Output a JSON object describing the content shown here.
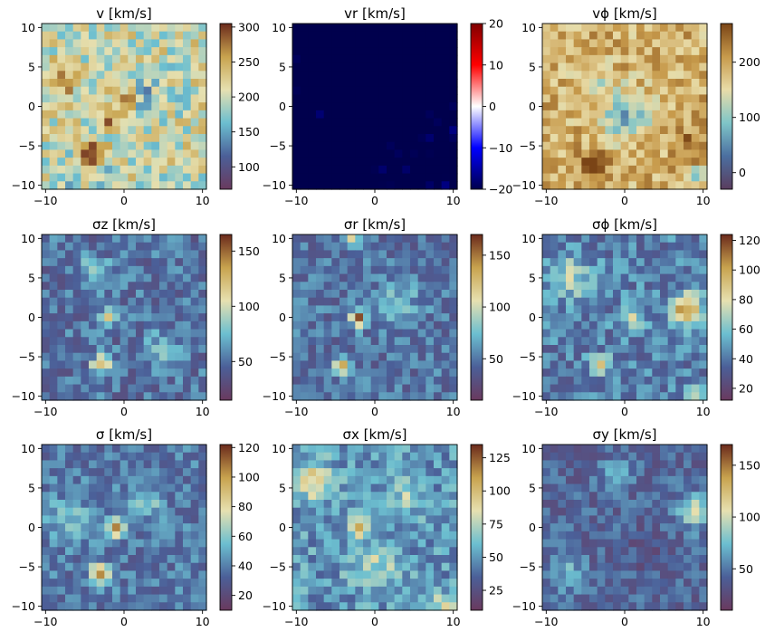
{
  "chart_data": [
    {
      "type": "heatmap",
      "title": "v [km/s]",
      "cmap": "speed",
      "vmin": 68,
      "vmax": 305,
      "xlim": [
        -10.5,
        10.5
      ],
      "ylim": [
        -10.5,
        10.5
      ],
      "xticks": [
        -10,
        0,
        10
      ],
      "yticks": [
        -10,
        -5,
        0,
        5,
        10
      ],
      "cbar_ticks": [
        100,
        150,
        200,
        250,
        300
      ],
      "base": 205,
      "amp": 45,
      "seed": 11,
      "features": [
        [
          0,
          1,
          65,
          1.2
        ],
        [
          -1.5,
          -1.5,
          55,
          1.0
        ],
        [
          -4,
          -6,
          95,
          1.0
        ],
        [
          -3,
          -9,
          -35,
          1.0
        ],
        [
          -7,
          -9,
          -40,
          1.5
        ],
        [
          3,
          1,
          -40,
          2.0
        ],
        [
          -8,
          3,
          40,
          1.5
        ]
      ]
    },
    {
      "type": "heatmap",
      "title": "vr [km/s]",
      "cmap": "seismic",
      "vmin": -20,
      "vmax": 20,
      "xlim": [
        -10.5,
        10.5
      ],
      "ylim": [
        -10.5,
        10.5
      ],
      "xticks": [
        -10,
        0,
        10
      ],
      "yticks": [
        -10,
        -5,
        0,
        5,
        10
      ],
      "cbar_ticks": [
        -20,
        -10,
        0,
        10,
        20
      ],
      "base": -25,
      "amp": 8,
      "seed": 23,
      "features": [
        [
          1,
          7,
          -60,
          3.5
        ],
        [
          0,
          3,
          -45,
          2.5
        ],
        [
          -2,
          -3,
          -40,
          1.5
        ],
        [
          -8,
          9,
          -30,
          1.5
        ],
        [
          7,
          9,
          -40,
          2.0
        ],
        [
          -7,
          -9,
          -40,
          1.5
        ]
      ]
    },
    {
      "type": "heatmap",
      "title": "vϕ [km/s]",
      "cmap": "brbg_soft",
      "vmin": -30,
      "vmax": 270,
      "xlim": [
        -10.5,
        10.5
      ],
      "ylim": [
        -10.5,
        10.5
      ],
      "xticks": [
        -10,
        0,
        10
      ],
      "yticks": [
        -10,
        -5,
        0,
        5,
        10
      ],
      "cbar_ticks": [
        0,
        100,
        200
      ],
      "base": 190,
      "amp": 45,
      "seed": 37,
      "features": [
        [
          0,
          -1,
          -110,
          2.2
        ],
        [
          -4,
          4,
          -55,
          1.5
        ],
        [
          -4,
          -7,
          160,
          0.9
        ],
        [
          9,
          -9,
          -110,
          0.9
        ],
        [
          8,
          -5,
          45,
          1.5
        ]
      ]
    },
    {
      "type": "heatmap",
      "title": "σz [km/s]",
      "cmap": "speed",
      "vmin": 15,
      "vmax": 165,
      "xlim": [
        -10.5,
        10.5
      ],
      "ylim": [
        -10.5,
        10.5
      ],
      "xticks": [
        -10,
        0,
        10
      ],
      "yticks": [
        -10,
        -5,
        0,
        5,
        10
      ],
      "cbar_ticks": [
        50,
        100,
        150
      ],
      "base": 50,
      "amp": 18,
      "seed": 41,
      "features": [
        [
          -2,
          0,
          70,
          0.8
        ],
        [
          -3,
          -6,
          85,
          0.8
        ],
        [
          -4,
          6,
          25,
          1.5
        ],
        [
          5,
          -4,
          25,
          1.5
        ]
      ]
    },
    {
      "type": "heatmap",
      "title": "σr [km/s]",
      "cmap": "speed",
      "vmin": 10,
      "vmax": 170,
      "xlim": [
        -10.5,
        10.5
      ],
      "ylim": [
        -10.5,
        10.5
      ],
      "xticks": [
        -10,
        0,
        10
      ],
      "yticks": [
        -10,
        -5,
        0,
        5,
        10
      ],
      "cbar_ticks": [
        50,
        100,
        150
      ],
      "base": 48,
      "amp": 18,
      "seed": 53,
      "features": [
        [
          -2,
          0,
          95,
          0.8
        ],
        [
          -4,
          -6,
          80,
          0.8
        ],
        [
          -3,
          10,
          75,
          0.7
        ],
        [
          3,
          2,
          25,
          2.0
        ]
      ]
    },
    {
      "type": "heatmap",
      "title": "σϕ [km/s]",
      "cmap": "speed",
      "vmin": 12,
      "vmax": 124,
      "xlim": [
        -10.5,
        10.5
      ],
      "ylim": [
        -10.5,
        10.5
      ],
      "xticks": [
        -10,
        0,
        10
      ],
      "yticks": [
        -10,
        -5,
        0,
        5,
        10
      ],
      "cbar_ticks": [
        20,
        40,
        60,
        80,
        100,
        120
      ],
      "base": 42,
      "amp": 14,
      "seed": 67,
      "features": [
        [
          8,
          1,
          65,
          1.3
        ],
        [
          -3,
          -6,
          55,
          0.8
        ],
        [
          -7,
          5,
          25,
          2.0
        ],
        [
          1,
          0,
          30,
          1.0
        ],
        [
          9,
          -10,
          25,
          1.0
        ]
      ]
    },
    {
      "type": "heatmap",
      "title": "σ [km/s]",
      "cmap": "speed",
      "vmin": 10,
      "vmax": 122,
      "xlim": [
        -10.5,
        10.5
      ],
      "ylim": [
        -10.5,
        10.5
      ],
      "xticks": [
        -10,
        0,
        10
      ],
      "yticks": [
        -10,
        -5,
        0,
        5,
        10
      ],
      "cbar_ticks": [
        20,
        40,
        60,
        80,
        100,
        120
      ],
      "base": 38,
      "amp": 12,
      "seed": 79,
      "features": [
        [
          -1,
          0,
          75,
          0.8
        ],
        [
          -3,
          -6,
          70,
          0.9
        ],
        [
          -7,
          1,
          20,
          2.0
        ],
        [
          3,
          3,
          20,
          1.5
        ]
      ]
    },
    {
      "type": "heatmap",
      "title": "σx [km/s]",
      "cmap": "speed",
      "vmin": 10,
      "vmax": 135,
      "xlim": [
        -10.5,
        10.5
      ],
      "ylim": [
        -10.5,
        10.5
      ],
      "xticks": [
        -10,
        0,
        10
      ],
      "yticks": [
        -10,
        -5,
        0,
        5,
        10
      ],
      "cbar_ticks": [
        25,
        50,
        75,
        100,
        125
      ],
      "base": 50,
      "amp": 16,
      "seed": 83,
      "features": [
        [
          -2,
          0,
          50,
          1.0
        ],
        [
          -8,
          6,
          40,
          1.8
        ],
        [
          9,
          -10,
          40,
          1.0
        ],
        [
          0,
          -5,
          25,
          2.0
        ],
        [
          4,
          4,
          20,
          1.5
        ]
      ]
    },
    {
      "type": "heatmap",
      "title": "σy [km/s]",
      "cmap": "speed",
      "vmin": 10,
      "vmax": 170,
      "xlim": [
        -10.5,
        10.5
      ],
      "ylim": [
        -10.5,
        10.5
      ],
      "xticks": [
        -10,
        0,
        10
      ],
      "yticks": [
        -10,
        -5,
        0,
        5,
        10
      ],
      "cbar_ticks": [
        50,
        100,
        150
      ],
      "base": 42,
      "amp": 16,
      "seed": 97,
      "features": [
        [
          9,
          2,
          60,
          1.5
        ],
        [
          -7,
          -6,
          30,
          1.5
        ],
        [
          -1,
          7,
          25,
          1.5
        ],
        [
          3,
          -3,
          -10,
          2.0
        ]
      ]
    }
  ],
  "colormaps": {
    "speed": [
      "#6a3a5e",
      "#4b5f98",
      "#6cbfd0",
      "#e6e0b0",
      "#c8a34e",
      "#6b2a1c"
    ],
    "seismic": [
      "#00004d",
      "#0000ff",
      "#ffffff",
      "#ff0000",
      "#800000"
    ],
    "brbg_soft": [
      "#5a3d5e",
      "#4b6fa0",
      "#7fc5c8",
      "#e8dca8",
      "#c79a4b",
      "#7a4416"
    ]
  }
}
